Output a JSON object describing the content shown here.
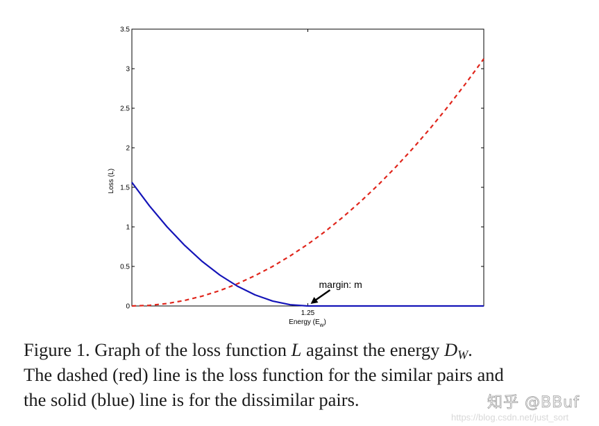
{
  "chart_data": {
    "type": "line",
    "title": "",
    "xlabel": "Energy (E",
    "xlabel_subscript": "w",
    "xlabel_close": ")",
    "ylabel": "Loss (L)",
    "xlim": [
      0,
      2.5
    ],
    "ylim": [
      0,
      3.5
    ],
    "x_ticks": [
      {
        "value": 1.25,
        "label": "1.25"
      }
    ],
    "y_ticks": [
      {
        "value": 0,
        "label": "0"
      },
      {
        "value": 0.5,
        "label": "0.5"
      },
      {
        "value": 1,
        "label": "1"
      },
      {
        "value": 1.5,
        "label": "1.5"
      },
      {
        "value": 2,
        "label": "2"
      },
      {
        "value": 2.5,
        "label": "2.5"
      },
      {
        "value": 3,
        "label": "3"
      },
      {
        "value": 3.5,
        "label": "3.5"
      }
    ],
    "series": [
      {
        "name": "similar pairs loss",
        "style": "dashed",
        "color": "#e0251b",
        "x": [
          0,
          0.125,
          0.25,
          0.375,
          0.5,
          0.625,
          0.75,
          0.875,
          1.0,
          1.125,
          1.25,
          1.375,
          1.5,
          1.625,
          1.75,
          1.875,
          2.0,
          2.125,
          2.25,
          2.375,
          2.5
        ],
        "y": [
          0,
          0.008,
          0.031,
          0.07,
          0.125,
          0.195,
          0.281,
          0.383,
          0.5,
          0.633,
          0.781,
          0.945,
          1.125,
          1.32,
          1.531,
          1.758,
          2.0,
          2.258,
          2.531,
          2.82,
          3.125
        ]
      },
      {
        "name": "dissimilar pairs loss",
        "style": "solid",
        "color": "#1414b8",
        "x": [
          0,
          0.125,
          0.25,
          0.375,
          0.5,
          0.625,
          0.75,
          0.875,
          1.0,
          1.125,
          1.25,
          1.5,
          1.75,
          2.0,
          2.25,
          2.5
        ],
        "y": [
          1.5625,
          1.2656,
          1.0,
          0.7656,
          0.5625,
          0.3906,
          0.25,
          0.1406,
          0.0625,
          0.0156,
          0,
          0,
          0,
          0,
          0,
          0
        ]
      }
    ],
    "annotations": [
      {
        "text": "margin: m",
        "x": 1.25,
        "y": 0,
        "arrow": true
      }
    ],
    "grid": false,
    "legend": "none"
  },
  "caption": {
    "line1_prefix": "Figure 1. Graph of the loss function ",
    "line1_var_L": "L",
    "line1_middle": " against the energy ",
    "line1_var_D": "D",
    "line1_var_D_sub": "W",
    "line1_suffix": ".",
    "line2": "The dashed (red) line is the loss function for the similar pairs and",
    "line3": "the solid (blue) line is for the dissimilar pairs."
  },
  "watermark": {
    "brand": "知乎 @BBuf",
    "url": "https://blog.csdn.net/just_sort"
  }
}
